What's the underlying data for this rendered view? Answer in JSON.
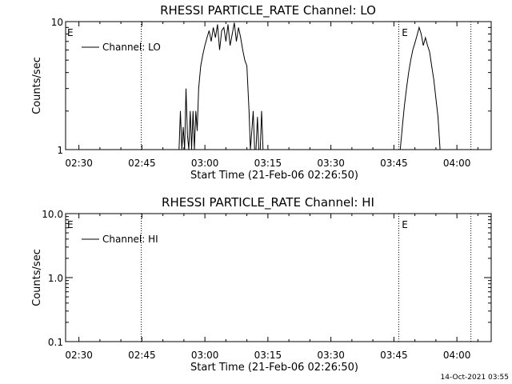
{
  "footer_timestamp": "14-Oct-2021 03:55",
  "chart_data": [
    {
      "type": "line",
      "title": "RHESSI PARTICLE_RATE Channel: LO",
      "xlabel": "Start Time (21-Feb-06 02:26:50)",
      "ylabel": "Counts/sec",
      "yscale": "log",
      "ylim": [
        1,
        10
      ],
      "yticks": [
        1,
        10
      ],
      "ytick_labels": [
        "1",
        "10"
      ],
      "xlim": [
        "02:26:50",
        "04:08:10"
      ],
      "xticks": [
        "02:30",
        "02:45",
        "03:00",
        "03:15",
        "03:30",
        "03:45",
        "04:00"
      ],
      "legend": {
        "label": "Channel: LO",
        "position": "top-left"
      },
      "eclipse_markers": [
        "02:26:50",
        "03:46:30"
      ],
      "eclipse_label": "E",
      "vlines": [
        "02:44:50",
        "03:46:10",
        "04:03:20"
      ],
      "series": [
        {
          "name": "Channel: LO",
          "segments": [
            [
              [
                "02:53:50",
                1.0
              ],
              [
                "02:54:10",
                2.0
              ],
              [
                "02:54:30",
                1.0
              ],
              [
                "02:54:50",
                1.5
              ],
              [
                "02:55:10",
                1.0
              ],
              [
                "02:55:30",
                3.0
              ],
              [
                "02:55:50",
                1.3
              ],
              [
                "02:56:10",
                1.0
              ],
              [
                "02:56:30",
                2.0
              ],
              [
                "02:56:50",
                1.0
              ],
              [
                "02:57:10",
                2.0
              ],
              [
                "02:57:30",
                1.0
              ],
              [
                "02:57:50",
                2.0
              ],
              [
                "02:58:10",
                1.4
              ],
              [
                "02:58:30",
                3.0
              ],
              [
                "02:59:00",
                4.5
              ],
              [
                "02:59:30",
                5.5
              ],
              [
                "03:00:00",
                6.5
              ],
              [
                "03:00:30",
                7.5
              ],
              [
                "03:01:00",
                8.5
              ],
              [
                "03:01:30",
                7.0
              ],
              [
                "03:02:00",
                9.0
              ],
              [
                "03:02:30",
                7.5
              ],
              [
                "03:03:00",
                9.5
              ],
              [
                "03:03:30",
                6.0
              ],
              [
                "03:04:00",
                8.5
              ],
              [
                "03:04:30",
                9.0
              ],
              [
                "03:05:00",
                7.0
              ],
              [
                "03:05:30",
                9.5
              ],
              [
                "03:06:00",
                6.5
              ],
              [
                "03:06:30",
                8.0
              ],
              [
                "03:07:00",
                9.8
              ],
              [
                "03:07:30",
                7.0
              ],
              [
                "03:08:00",
                9.0
              ],
              [
                "03:08:30",
                7.5
              ],
              [
                "03:09:00",
                6.0
              ],
              [
                "03:09:30",
                5.0
              ],
              [
                "03:10:00",
                4.5
              ],
              [
                "03:10:30",
                2.0
              ],
              [
                "03:10:50",
                1.0
              ],
              [
                "03:11:10",
                1.4
              ],
              [
                "03:11:30",
                2.0
              ],
              [
                "03:11:50",
                1.0
              ],
              [
                "03:12:10",
                1.0
              ],
              [
                "03:12:30",
                1.8
              ],
              [
                "03:12:50",
                1.0
              ],
              [
                "03:13:10",
                1.0
              ],
              [
                "03:13:30",
                2.0
              ],
              [
                "03:13:50",
                1.0
              ]
            ],
            [
              [
                "03:46:30",
                1.0
              ],
              [
                "03:47:00",
                1.5
              ],
              [
                "03:47:30",
                2.2
              ],
              [
                "03:48:00",
                3.0
              ],
              [
                "03:48:30",
                4.0
              ],
              [
                "03:49:00",
                5.0
              ],
              [
                "03:49:30",
                6.0
              ],
              [
                "03:50:00",
                6.8
              ],
              [
                "03:50:30",
                7.8
              ],
              [
                "03:51:00",
                9.0
              ],
              [
                "03:51:30",
                8.0
              ],
              [
                "03:52:00",
                6.5
              ],
              [
                "03:52:30",
                7.5
              ],
              [
                "03:53:00",
                6.5
              ],
              [
                "03:53:30",
                5.8
              ],
              [
                "03:54:00",
                4.5
              ],
              [
                "03:54:30",
                3.5
              ],
              [
                "03:55:00",
                2.5
              ],
              [
                "03:55:30",
                1.8
              ],
              [
                "03:56:00",
                1.0
              ]
            ]
          ]
        }
      ]
    },
    {
      "type": "line",
      "title": "RHESSI PARTICLE_RATE Channel: HI",
      "xlabel": "Start Time (21-Feb-06 02:26:50)",
      "ylabel": "Counts/sec",
      "yscale": "log",
      "ylim": [
        0.1,
        10
      ],
      "yticks": [
        0.1,
        1,
        10
      ],
      "ytick_labels": [
        "0.1",
        "1.0",
        "10.0"
      ],
      "xlim": [
        "02:26:50",
        "04:08:10"
      ],
      "xticks": [
        "02:30",
        "02:45",
        "03:00",
        "03:15",
        "03:30",
        "03:45",
        "04:00"
      ],
      "legend": {
        "label": "Channel: HI",
        "position": "top-left"
      },
      "eclipse_markers": [
        "02:26:50",
        "03:46:30"
      ],
      "eclipse_label": "E",
      "vlines": [
        "02:44:50",
        "03:46:10",
        "04:03:20"
      ],
      "series": [
        {
          "name": "Channel: HI",
          "segments": []
        }
      ]
    }
  ]
}
